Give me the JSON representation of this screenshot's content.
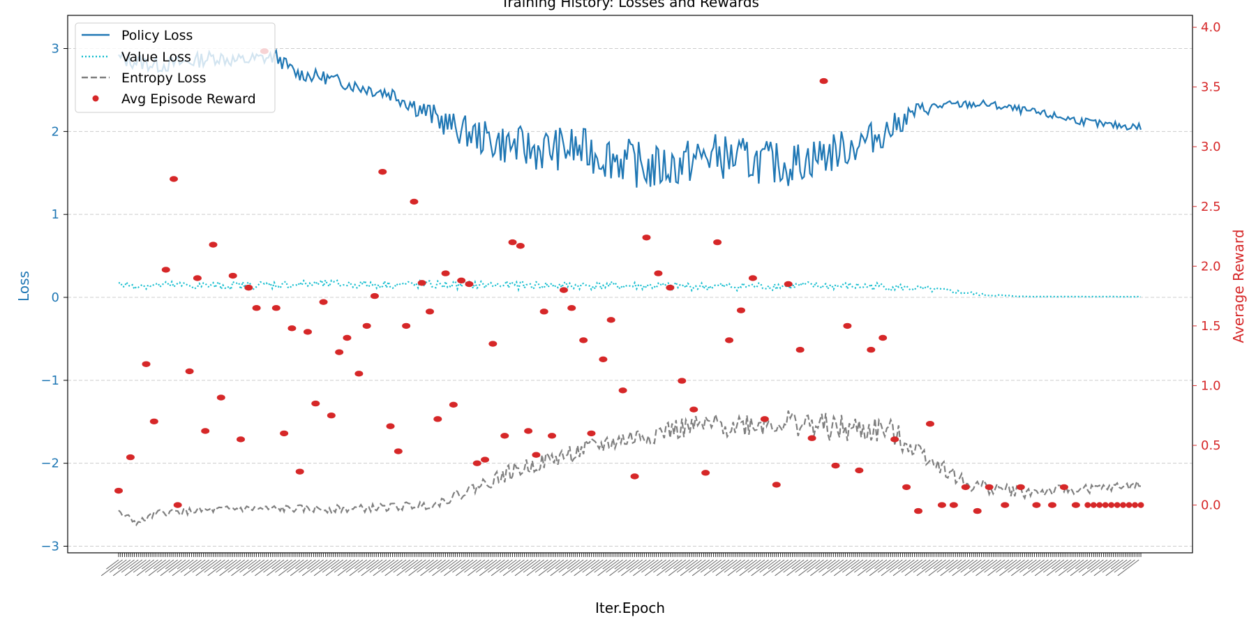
{
  "chart_data": {
    "type": "line",
    "title": "Training History: Losses and Rewards",
    "xlabel": "Iter.Epoch",
    "ylabel": "Loss",
    "y2label": "Average Reward",
    "ylim": [
      -3.08,
      3.4
    ],
    "y2lim": [
      -0.4,
      4.1
    ],
    "yticks": [
      -3,
      -2,
      -1,
      0,
      1,
      2,
      3
    ],
    "y2ticks": [
      0.0,
      0.5,
      1.0,
      1.5,
      2.0,
      2.5,
      3.0,
      3.5,
      4.0
    ],
    "ytick_labels": [
      "−3",
      "−2",
      "−1",
      "0",
      "1",
      "2",
      "3"
    ],
    "y2tick_labels": [
      "0.0",
      "0.5",
      "1.0",
      "1.5",
      "2.0",
      "2.5",
      "3.0",
      "3.5",
      "4.0"
    ],
    "grid": true,
    "legend_position": "top-left",
    "n_points": 520,
    "colors": {
      "policy": "#1f77b4",
      "value": "#17becf",
      "entropy": "#7f7f7f",
      "reward": "#d62728",
      "left_axis": "#1f77b4",
      "right_axis": "#d62728",
      "grid": "#cccccc"
    },
    "series": [
      {
        "name": "Policy Loss",
        "axis": "left",
        "style": "solid",
        "keypoints": [
          [
            0,
            2.88
          ],
          [
            20,
            2.8
          ],
          [
            30,
            2.82
          ],
          [
            50,
            2.9
          ],
          [
            60,
            2.85
          ],
          [
            80,
            2.9
          ],
          [
            90,
            2.7
          ],
          [
            105,
            2.65
          ],
          [
            120,
            2.55
          ],
          [
            130,
            2.5
          ],
          [
            140,
            2.45
          ],
          [
            170,
            2.05
          ],
          [
            190,
            1.88
          ],
          [
            210,
            1.78
          ],
          [
            230,
            1.8
          ],
          [
            250,
            1.7
          ],
          [
            270,
            1.55
          ],
          [
            285,
            1.6
          ],
          [
            300,
            1.72
          ],
          [
            320,
            1.65
          ],
          [
            340,
            1.6
          ],
          [
            355,
            1.7
          ],
          [
            370,
            1.8
          ],
          [
            390,
            2.0
          ],
          [
            405,
            2.25
          ],
          [
            420,
            2.32
          ],
          [
            440,
            2.33
          ],
          [
            460,
            2.25
          ],
          [
            500,
            2.08
          ],
          [
            580,
            1.98
          ],
          [
            640,
            1.95
          ],
          [
            700,
            1.93
          ],
          [
            740,
            1.9
          ],
          [
            760,
            1.88
          ]
        ],
        "noise_keypoints": [
          [
            0,
            0.1
          ],
          [
            120,
            0.08
          ],
          [
            150,
            0.12
          ],
          [
            170,
            0.18
          ],
          [
            200,
            0.25
          ],
          [
            250,
            0.28
          ],
          [
            300,
            0.28
          ],
          [
            360,
            0.25
          ],
          [
            390,
            0.18
          ],
          [
            405,
            0.1
          ],
          [
            420,
            0.05
          ],
          [
            760,
            0.04
          ]
        ]
      },
      {
        "name": "Value Loss",
        "axis": "left",
        "style": "dotted",
        "keypoints": [
          [
            0,
            0.15
          ],
          [
            50,
            0.14
          ],
          [
            100,
            0.16
          ],
          [
            180,
            0.15
          ],
          [
            250,
            0.14
          ],
          [
            300,
            0.13
          ],
          [
            350,
            0.14
          ],
          [
            390,
            0.13
          ],
          [
            420,
            0.08
          ],
          [
            440,
            0.03
          ],
          [
            460,
            0.01
          ],
          [
            760,
            0.0
          ]
        ],
        "noise_keypoints": [
          [
            0,
            0.05
          ],
          [
            390,
            0.05
          ],
          [
            440,
            0.015
          ],
          [
            460,
            0.002
          ],
          [
            760,
            0.001
          ]
        ]
      },
      {
        "name": "Entropy Loss",
        "axis": "left",
        "style": "dashed",
        "keypoints": [
          [
            0,
            -2.6
          ],
          [
            10,
            -2.72
          ],
          [
            20,
            -2.6
          ],
          [
            60,
            -2.55
          ],
          [
            120,
            -2.55
          ],
          [
            160,
            -2.5
          ],
          [
            180,
            -2.3
          ],
          [
            200,
            -2.1
          ],
          [
            220,
            -1.95
          ],
          [
            250,
            -1.75
          ],
          [
            280,
            -1.6
          ],
          [
            300,
            -1.55
          ],
          [
            340,
            -1.5
          ],
          [
            370,
            -1.6
          ],
          [
            390,
            -1.6
          ],
          [
            410,
            -1.9
          ],
          [
            430,
            -2.25
          ],
          [
            460,
            -2.35
          ],
          [
            500,
            -2.3
          ],
          [
            550,
            -2.2
          ],
          [
            600,
            -2.05
          ],
          [
            700,
            -1.95
          ],
          [
            760,
            -2.0
          ]
        ],
        "noise_keypoints": [
          [
            0,
            0.04
          ],
          [
            160,
            0.05
          ],
          [
            200,
            0.1
          ],
          [
            300,
            0.14
          ],
          [
            380,
            0.18
          ],
          [
            420,
            0.1
          ],
          [
            500,
            0.05
          ],
          [
            600,
            0.08
          ],
          [
            760,
            0.1
          ]
        ]
      }
    ],
    "scatter": {
      "name": "Avg Episode Reward",
      "axis": "right",
      "x": [
        0,
        6,
        14,
        18,
        24,
        28,
        30,
        36,
        40,
        44,
        48,
        52,
        58,
        62,
        66,
        70,
        74,
        80,
        84,
        88,
        92,
        96,
        100,
        104,
        108,
        112,
        116,
        122,
        126,
        130,
        134,
        138,
        142,
        146,
        150,
        154,
        158,
        162,
        166,
        170,
        174,
        178,
        182,
        186,
        190,
        196,
        200,
        204,
        208,
        212,
        216,
        220,
        226,
        230,
        236,
        240,
        246,
        250,
        256,
        262,
        268,
        274,
        280,
        286,
        292,
        298,
        304,
        310,
        316,
        322,
        328,
        334,
        340,
        346,
        352,
        358,
        364,
        370,
        376,
        382,
        388,
        394,
        400,
        406,
        412,
        418,
        424,
        430,
        436,
        442,
        450,
        458,
        466,
        474,
        480,
        486
      ],
      "y": [
        0.12,
        0.4,
        1.18,
        0.7,
        1.97,
        2.73,
        0.0,
        1.12,
        1.9,
        0.62,
        2.18,
        0.9,
        1.92,
        0.55,
        1.82,
        1.65,
        3.8,
        1.65,
        0.6,
        1.48,
        0.28,
        1.45,
        0.85,
        1.7,
        0.75,
        1.28,
        1.4,
        1.1,
        1.5,
        1.75,
        2.79,
        0.66,
        0.45,
        1.5,
        2.54,
        1.86,
        1.62,
        0.72,
        1.94,
        0.84,
        1.88,
        1.85,
        0.35,
        0.38,
        1.35,
        0.58,
        2.2,
        2.17,
        0.62,
        0.42,
        1.62,
        0.58,
        1.8,
        1.65,
        1.38,
        0.6,
        1.22,
        1.55,
        0.96,
        0.24,
        2.24,
        1.94,
        1.82,
        1.04,
        0.8,
        0.27,
        2.2,
        1.38,
        1.63,
        1.9,
        0.72,
        0.17,
        1.85,
        1.3,
        0.56,
        3.55,
        0.33,
        1.5,
        0.29,
        1.3,
        1.4,
        0.55,
        0.15,
        -0.05,
        0.68,
        0.0,
        0.0,
        0.15,
        -0.05,
        0.15,
        0.0,
        0.15,
        0.0,
        0.0,
        0.15,
        0.0
      ]
    },
    "legend": [
      {
        "label": "Policy Loss",
        "style": "line"
      },
      {
        "label": "Value Loss",
        "style": "dotted"
      },
      {
        "label": "Entropy Loss",
        "style": "dashed"
      },
      {
        "label": "Avg Episode Reward",
        "style": "marker"
      }
    ]
  }
}
